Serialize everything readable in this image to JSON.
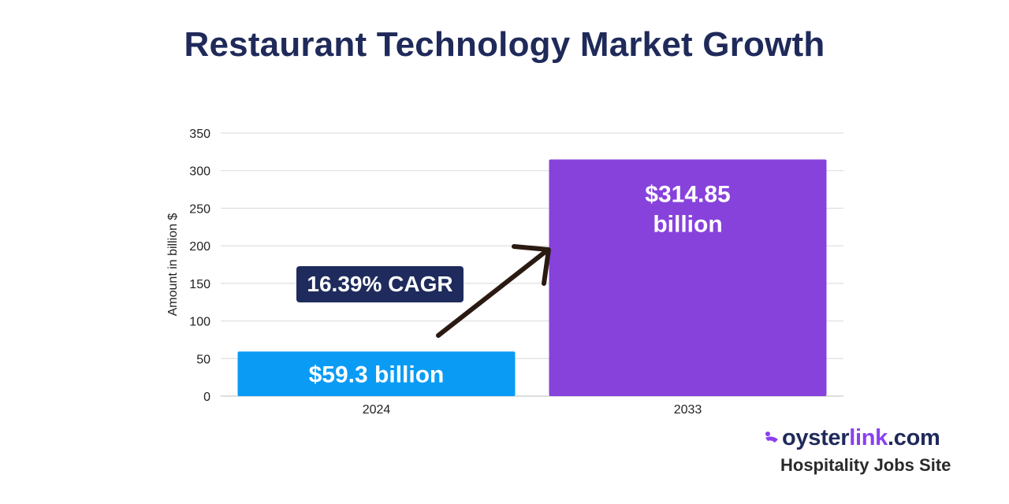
{
  "brand": {
    "name_part1": "oyster",
    "name_part2": "link",
    "name_part3": ".com",
    "tagline": "Hospitality Jobs Site",
    "icon": "oyster-logo-icon",
    "colors": {
      "navy": "#1f2a5a",
      "purple": "#8a3ff0"
    }
  },
  "chart_data": {
    "type": "bar",
    "title": "Restaurant Technology Market Growth",
    "xlabel": "",
    "ylabel": "Amount in billion $",
    "categories": [
      "2024",
      "2033"
    ],
    "values": [
      59.3,
      314.85
    ],
    "data_labels": [
      "$59.3 billion",
      "$314.85 billion"
    ],
    "bar_colors": [
      "#0a9bf5",
      "#8742dc"
    ],
    "ylim": [
      0,
      350
    ],
    "yticks": [
      0,
      50,
      100,
      150,
      200,
      250,
      300,
      350
    ],
    "grid": true,
    "legend": "none",
    "annotation": {
      "text": "16.39% CAGR",
      "box_color": "#1e2b5c",
      "arrow": "up-right"
    }
  }
}
